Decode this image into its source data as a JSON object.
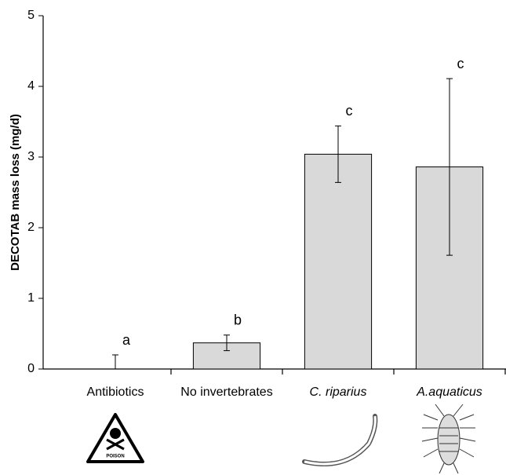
{
  "chart_data": {
    "type": "bar",
    "y_label": "DECOTAB mass loss (mg/d)",
    "categories": [
      "Antibiotics",
      "No invertebrates",
      "C. riparius",
      "A.aquaticus"
    ],
    "values": [
      0,
      0.37,
      3.04,
      2.86
    ],
    "errors": [
      0.2,
      0.11,
      0.4,
      1.25
    ],
    "significance_labels": [
      "a",
      "b",
      "c",
      "c"
    ],
    "color": "#d9d9d9",
    "ylim": [
      0,
      5
    ],
    "yticks": [
      0,
      1,
      2,
      3,
      4,
      5
    ],
    "grid": false
  },
  "poison_sign_label": "POISON"
}
